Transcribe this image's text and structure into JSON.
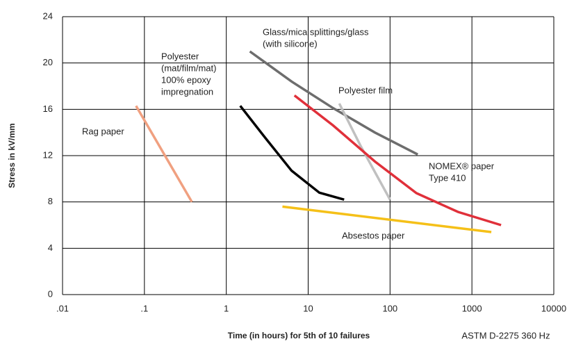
{
  "chart_data": {
    "type": "line",
    "x_scale": "log",
    "grid": true,
    "x_label": "Time (in hours) for 5th of 10 failures",
    "y_label": "Stress in kV/mm",
    "note": "ASTM D-2275 360 Hz",
    "xlim": [
      0.01,
      10000
    ],
    "xticks": [
      {
        "value": 0.01,
        "label": ".01"
      },
      {
        "value": 0.1,
        "label": ".1"
      },
      1,
      10,
      100,
      1000,
      10000
    ],
    "ylim": [
      0,
      24
    ],
    "yticks": [
      0,
      4,
      8,
      12,
      16,
      20,
      24
    ],
    "series": [
      {
        "label_lines": [
          "Rag paper"
        ],
        "color": "#f0a080",
        "x": [
          0.079,
          0.38
        ],
        "values": [
          16.3,
          8
        ]
      },
      {
        "label_lines": [
          "Polyester",
          "(mat/film/mat)",
          "100% epoxy",
          "impregnation"
        ],
        "color": "#000000",
        "x": [
          1.48,
          2.87,
          6.27,
          13.7,
          27.5
        ],
        "values": [
          16.3,
          13.7,
          10.7,
          8.8,
          8.2
        ]
      },
      {
        "label_lines": [
          "Glass/mica splittings/glass",
          "(with silicone)"
        ],
        "color": "#6d6d6d",
        "x": [
          1.94,
          6.27,
          20.2,
          65.2,
          218
        ],
        "values": [
          21.0,
          18.4,
          16.1,
          14.0,
          12.1
        ]
      },
      {
        "label_lines": [
          "Polyester film"
        ],
        "color": "#c0c0c0",
        "x": [
          24,
          44,
          100
        ],
        "values": [
          16.5,
          12.8,
          8.2
        ]
      },
      {
        "label_lines": [
          "NOMEX® paper",
          "Type 410"
        ],
        "color": "#e0303a",
        "x": [
          6.8,
          20.2,
          65.2,
          210,
          676,
          2270
        ],
        "values": [
          17.2,
          14.6,
          11.5,
          8.76,
          7.14,
          6.0
        ]
      },
      {
        "label_lines": [
          "Absestos paper"
        ],
        "color": "#f5c018",
        "x": [
          4.85,
          1726
        ],
        "values": [
          7.6,
          5.4
        ]
      }
    ]
  }
}
